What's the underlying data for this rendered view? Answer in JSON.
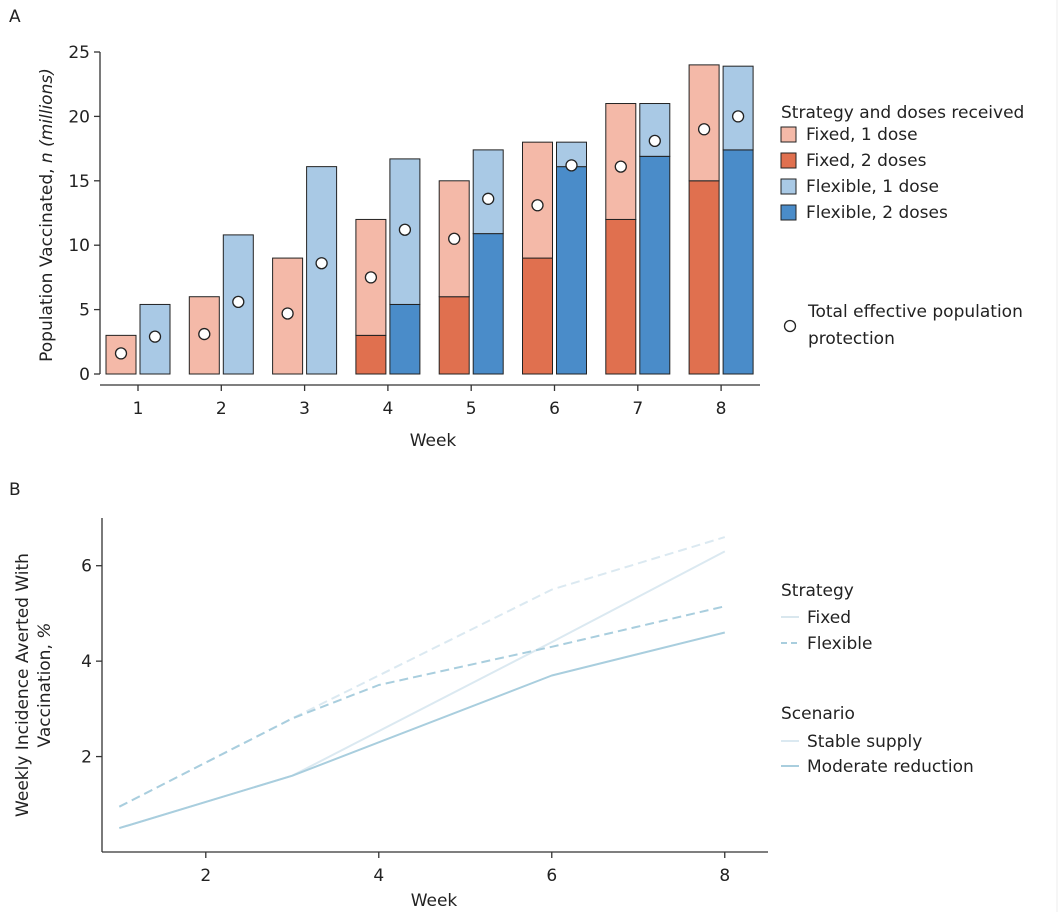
{
  "chart_data": [
    {
      "type": "bar",
      "panel_label": "A",
      "xlabel": "Week",
      "ylabel": "Population Vaccinated, n (millions)",
      "ylabel_main": "Population Vaccinated, ",
      "ylabel_italic": "n (millions)",
      "categories": [
        "1",
        "2",
        "3",
        "4",
        "5",
        "6",
        "7",
        "8"
      ],
      "ylim": [
        0,
        25
      ],
      "yticks": [
        0,
        5,
        10,
        15,
        20,
        25
      ],
      "grid": false,
      "legend_title": "Strategy and doses received",
      "legend_position": "right",
      "colors": {
        "fixed_1": "#f4b9a8",
        "fixed_2": "#e0704f",
        "flexible_1": "#a9c9e5",
        "flexible_2": "#4a8cc9",
        "outline": "#222222",
        "marker_fill": "#ffffff"
      },
      "series": [
        {
          "name": "Fixed, 1 dose",
          "key": "fixed_1",
          "values": [
            3,
            6,
            9,
            9,
            9,
            9,
            9,
            9
          ]
        },
        {
          "name": "Fixed, 2 doses",
          "key": "fixed_2",
          "values": [
            0,
            0,
            0,
            3,
            6,
            9,
            12,
            15
          ]
        },
        {
          "name": "Flexible, 1 dose",
          "key": "flexible_1",
          "values": [
            5.4,
            10.8,
            16.1,
            11.3,
            6.5,
            1.9,
            4.1,
            6.5
          ]
        },
        {
          "name": "Flexible, 2 doses",
          "key": "flexible_2",
          "values": [
            0,
            0,
            0,
            5.4,
            10.9,
            16.1,
            16.9,
            17.4
          ]
        }
      ],
      "markers": {
        "name": "Total effective population protection",
        "fixed": [
          1.6,
          3.1,
          4.7,
          7.5,
          10.5,
          13.1,
          16.1,
          19.0
        ],
        "flexible": [
          2.9,
          5.6,
          8.6,
          11.2,
          13.6,
          16.2,
          18.1,
          20.0
        ]
      }
    },
    {
      "type": "line",
      "panel_label": "B",
      "xlabel": "Week",
      "ylabel": "Weekly Incidence Averted With Vaccination, %",
      "ylabel_line1": "Weekly Incidence Averted With",
      "ylabel_line2": "Vaccination, ",
      "ylabel_unit": "%",
      "xlim": [
        0.8,
        8.5
      ],
      "ylim": [
        0,
        7
      ],
      "xticks": [
        2,
        4,
        6,
        8
      ],
      "yticks": [
        2,
        4,
        6
      ],
      "grid": false,
      "legend_position": "right",
      "strategy_legend": {
        "title": "Strategy",
        "items": [
          "Fixed",
          "Flexible"
        ]
      },
      "scenario_legend": {
        "title": "Scenario",
        "items": [
          "Stable supply",
          "Moderate reduction"
        ]
      },
      "colors": {
        "stable": "#dbe9f1",
        "moderate": "#a9cede"
      },
      "series": [
        {
          "strategy": "Fixed",
          "scenario": "Stable supply",
          "x": [
            1,
            3,
            6,
            8
          ],
          "y": [
            0.5,
            1.6,
            4.4,
            6.3
          ]
        },
        {
          "strategy": "Fixed",
          "scenario": "Moderate reduction",
          "x": [
            1,
            3,
            6,
            8
          ],
          "y": [
            0.5,
            1.6,
            3.7,
            4.6
          ]
        },
        {
          "strategy": "Flexible",
          "scenario": "Stable supply",
          "x": [
            1,
            3,
            6,
            8
          ],
          "y": [
            0.95,
            2.8,
            5.5,
            6.6
          ]
        },
        {
          "strategy": "Flexible",
          "scenario": "Moderate reduction",
          "x": [
            1,
            3,
            4,
            6,
            8
          ],
          "y": [
            0.95,
            2.8,
            3.5,
            4.3,
            5.15
          ]
        }
      ]
    }
  ]
}
